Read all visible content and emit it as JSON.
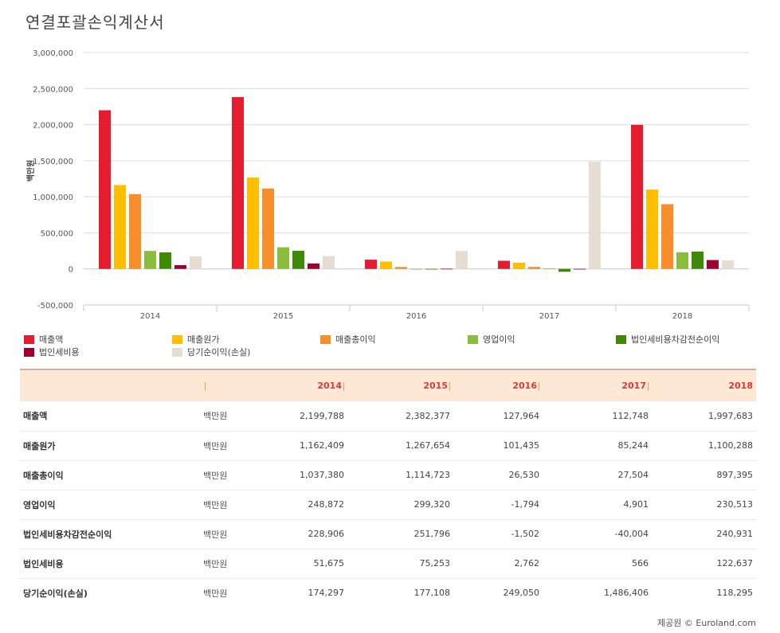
{
  "title": "연결포괄손익계산서",
  "footer": "제공원 © Euroland.com",
  "unit": "백만원",
  "colors": {
    "매출액": "#e31d2f",
    "매출원가": "#ffbf00",
    "매출총이익": "#f68e2b",
    "영업이익": "#8bbd3c",
    "법인세비용차감전순이익": "#3e8a06",
    "법인세비용": "#a0002f",
    "당기순이익(손실)": "#e6ddd2"
  },
  "chart_data": {
    "type": "bar",
    "categories": [
      "2014",
      "2015",
      "2016",
      "2017",
      "2018"
    ],
    "ylabel": "백만원",
    "ylim": [
      -500000,
      3000000
    ],
    "yticks": [
      "-500,000",
      "0",
      "500,000",
      "1,000,000",
      "1,500,000",
      "2,000,000",
      "2,500,000",
      "3,000,000"
    ],
    "ytick_values": [
      -500000,
      0,
      500000,
      1000000,
      1500000,
      2000000,
      2500000,
      3000000
    ],
    "legend_position": "bottom",
    "series": [
      {
        "name": "매출액",
        "values": [
          2199788,
          2382377,
          127964,
          112748,
          1997683
        ]
      },
      {
        "name": "매출원가",
        "values": [
          1162409,
          1267654,
          101435,
          85244,
          1100288
        ]
      },
      {
        "name": "매출총이익",
        "values": [
          1037380,
          1114723,
          26530,
          27504,
          897395
        ]
      },
      {
        "name": "영업이익",
        "values": [
          248872,
          299320,
          -1794,
          4901,
          230513
        ]
      },
      {
        "name": "법인세비용차감전순이익",
        "values": [
          228906,
          251796,
          -1502,
          -40004,
          240931
        ]
      },
      {
        "name": "법인세비용",
        "values": [
          51675,
          75253,
          2762,
          566,
          122637
        ]
      },
      {
        "name": "당기순이익(손실)",
        "values": [
          174297,
          177108,
          249050,
          1486406,
          118295
        ]
      }
    ]
  },
  "table": {
    "headers": [
      "2014",
      "2015",
      "2016",
      "2017",
      "2018"
    ],
    "rows": [
      {
        "label": "매출액",
        "unit": "백만원",
        "values": [
          "2,199,788",
          "2,382,377",
          "127,964",
          "112,748",
          "1,997,683"
        ]
      },
      {
        "label": "매출원가",
        "unit": "백만원",
        "values": [
          "1,162,409",
          "1,267,654",
          "101,435",
          "85,244",
          "1,100,288"
        ]
      },
      {
        "label": "매출총이익",
        "unit": "백만원",
        "values": [
          "1,037,380",
          "1,114,723",
          "26,530",
          "27,504",
          "897,395"
        ]
      },
      {
        "label": "영업이익",
        "unit": "백만원",
        "values": [
          "248,872",
          "299,320",
          "-1,794",
          "4,901",
          "230,513"
        ]
      },
      {
        "label": "법인세비용차감전순이익",
        "unit": "백만원",
        "values": [
          "228,906",
          "251,796",
          "-1,502",
          "-40,004",
          "240,931"
        ]
      },
      {
        "label": "법인세비용",
        "unit": "백만원",
        "values": [
          "51,675",
          "75,253",
          "2,762",
          "566",
          "122,637"
        ]
      },
      {
        "label": "당기순이익(손실)",
        "unit": "백만원",
        "values": [
          "174,297",
          "177,108",
          "249,050",
          "1,486,406",
          "118,295"
        ]
      }
    ]
  }
}
